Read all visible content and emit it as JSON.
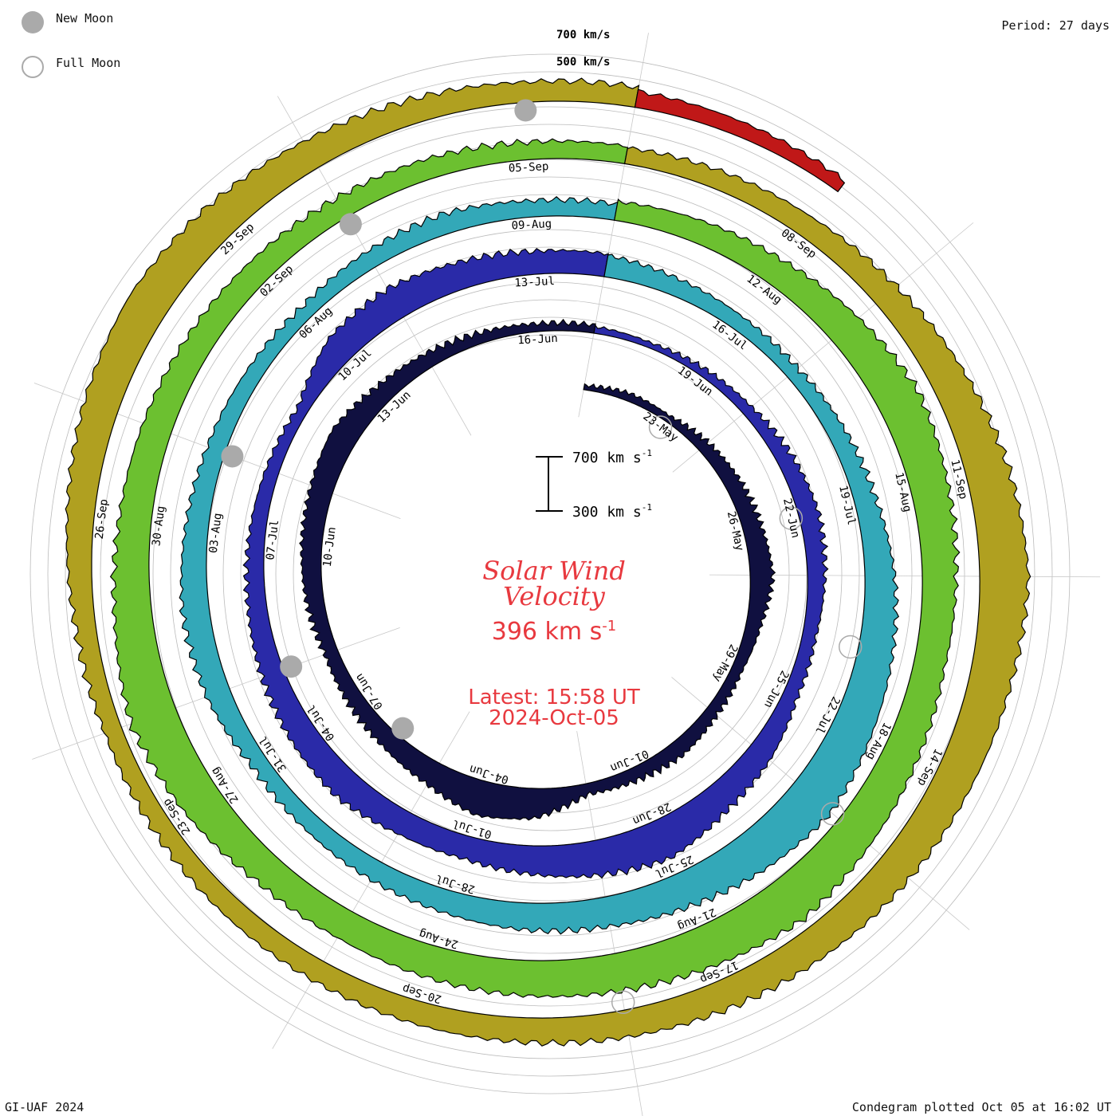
{
  "legend": {
    "new_moon": "New Moon",
    "full_moon": "Full Moon",
    "new_moon_color": "#aaaaaa",
    "full_moon_color": "#aaaaaa"
  },
  "period": "Period: 27 days",
  "ring_labels": {
    "outer": "700 km/s",
    "inner": "500 km/s"
  },
  "scale_bar": {
    "top": "700 km s",
    "bottom": "300 km s",
    "unit_exp": "-1"
  },
  "center": {
    "title_line1": "Solar Wind",
    "title_line2": "Velocity",
    "current_value": "396 km s",
    "current_exp": "-1",
    "latest_time": "Latest: 15:58 UT",
    "latest_date": "2024-Oct-05"
  },
  "footer": {
    "credit": "GI-UAF 2024",
    "plotted": "Condegram plotted Oct 05 at 16:02 UT"
  },
  "chart_data": {
    "type": "condegram",
    "title": "Solar Wind Velocity",
    "units": "km/s",
    "period_days": 27,
    "latest_value": 396,
    "spiral_start": "2024-05-21",
    "spiral_end": "2024-10-05",
    "cycles": [
      {
        "start": "2024-05-21",
        "color": "#101040"
      },
      {
        "start": "2024-06-17",
        "color": "#2a2aa8"
      },
      {
        "start": "2024-07-14",
        "color": "#33a8b8"
      },
      {
        "start": "2024-08-10",
        "color": "#6cc030"
      },
      {
        "start": "2024-09-06",
        "color": "#b0a020"
      },
      {
        "start": "2024-10-03",
        "color": "#c01818"
      }
    ],
    "cycle_speeds": [
      {
        "cycle": 1,
        "values": [
          330,
          360,
          350,
          390,
          420,
          440,
          470,
          410,
          380,
          390,
          420,
          400,
          380,
          520,
          560,
          480,
          440,
          420,
          400,
          430,
          450,
          470,
          500,
          440,
          410,
          380,
          360
        ]
      },
      {
        "cycle": 2,
        "values": [
          350,
          340,
          360,
          380,
          420,
          450,
          430,
          400,
          410,
          480,
          520,
          600,
          560,
          510,
          470,
          480,
          520,
          500,
          470,
          440,
          420,
          400,
          380,
          520,
          540,
          500,
          470
        ]
      },
      {
        "cycle": 3,
        "values": [
          460,
          430,
          410,
          400,
          430,
          460,
          520,
          560,
          600,
          650,
          610,
          560,
          520,
          500,
          470,
          450,
          430,
          420,
          480,
          500,
          470,
          440,
          420,
          400,
          430,
          450,
          420
        ]
      },
      {
        "cycle": 4,
        "values": [
          440,
          470,
          500,
          560,
          620,
          580,
          550,
          530,
          560,
          600,
          650,
          610,
          580,
          560,
          540,
          520,
          530,
          600,
          650,
          580,
          540,
          520,
          500,
          480,
          460,
          450,
          430
        ]
      },
      {
        "cycle": 5,
        "values": [
          420,
          440,
          460,
          500,
          560,
          620,
          660,
          610,
          580,
          560,
          540,
          520,
          500,
          480,
          470,
          460,
          450,
          440,
          430,
          450,
          500,
          560,
          600,
          570,
          520,
          480,
          450
        ]
      },
      {
        "cycle": 6,
        "values": [
          420,
          410,
          396
        ]
      }
    ],
    "date_labels": [
      "23-May",
      "26-May",
      "29-May",
      "01-Jun",
      "04-Jun",
      "07-Jun",
      "10-Jun",
      "13-Jun",
      "16-Jun",
      "19-Jun",
      "22-Jun",
      "25-Jun",
      "28-Jun",
      "01-Jul",
      "04-Jul",
      "07-Jul",
      "10-Jul",
      "13-Jul",
      "16-Jul",
      "19-Jul",
      "22-Jul",
      "25-Jul",
      "28-Jul",
      "31-Jul",
      "03-Aug",
      "06-Aug",
      "09-Aug",
      "12-Aug",
      "15-Aug",
      "18-Aug",
      "21-Aug",
      "24-Aug",
      "27-Aug",
      "30-Aug",
      "02-Sep",
      "05-Sep",
      "08-Sep",
      "11-Sep",
      "14-Sep",
      "17-Sep",
      "20-Sep",
      "23-Sep",
      "26-Sep",
      "29-Sep"
    ],
    "new_moons": [
      "2024-06-06",
      "2024-07-05",
      "2024-08-04",
      "2024-09-03",
      "2024-10-02"
    ],
    "full_moons": [
      "2024-05-23",
      "2024-06-22",
      "2024-07-21",
      "2024-08-19",
      "2024-09-18"
    ]
  }
}
